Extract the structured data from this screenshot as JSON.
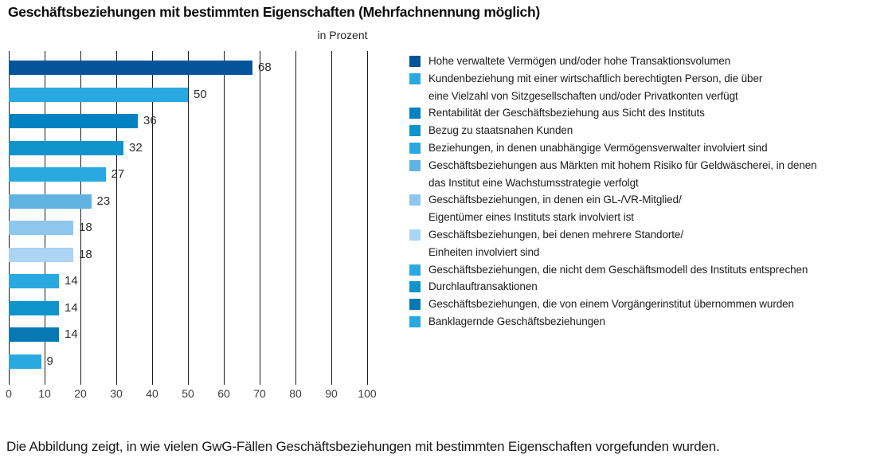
{
  "title": "Geschäftsbeziehungen mit bestimmten Eigenschaften (Mehrfachnennung möglich)",
  "caption": "Die Abbildung zeigt, in wie vielen GwG-Fällen Geschäftsbeziehungen mit bestimmten Eigenschaften vorgefunden wurden.",
  "chart_data": {
    "type": "bar",
    "orientation": "horizontal",
    "title": "Geschäftsbeziehungen mit bestimmten Eigenschaften (Mehrfachnennung möglich)",
    "unit_note": "in Prozent",
    "legend_position": "right",
    "grid": true,
    "x_axis": {
      "range": [
        0,
        100
      ],
      "ticks": [
        0,
        10,
        20,
        30,
        40,
        50,
        60,
        70,
        80,
        90,
        100
      ]
    },
    "items": [
      {
        "value": 68,
        "color": "#04549C",
        "label": [
          "Hohe verwaltete Vermögen und/oder hohe Transaktionsvolumen"
        ]
      },
      {
        "value": 50,
        "color": "#2AA9E0",
        "label": [
          "Kundenbeziehung mit einer wirtschaftlich berechtigten Person, die über",
          "eine Vielzahl von Sitzgesellschaften und/oder Privatkonten verfügt"
        ]
      },
      {
        "value": 36,
        "color": "#0082C1",
        "label": [
          "Rentabilität der Geschäftsbeziehung aus Sicht des Instituts"
        ]
      },
      {
        "value": 32,
        "color": "#0E93CB",
        "label": [
          "Bezug zu staatsnahen Kunden"
        ]
      },
      {
        "value": 27,
        "color": "#2AA9E0",
        "label": [
          "Beziehungen, in denen unabhängige Vermögensverwalter involviert sind"
        ]
      },
      {
        "value": 23,
        "color": "#60B3E2",
        "label": [
          "Geschäftsbeziehungen aus Märkten mit hohem Risiko für Geldwäscherei, in denen",
          "das Institut eine Wachstumsstrategie verfolgt"
        ]
      },
      {
        "value": 18,
        "color": "#8EC6ED",
        "label": [
          "Geschäftsbeziehungen, in denen ein GL-/VR-Mitglied/",
          "Eigentümer eines Instituts stark involviert ist"
        ]
      },
      {
        "value": 18,
        "color": "#ABD5F2",
        "label": [
          "Geschäftsbeziehungen, bei denen mehrere Standorte/",
          "Einheiten involviert sind"
        ]
      },
      {
        "value": 14,
        "color": "#2AA9E0",
        "label": [
          "Geschäftsbeziehungen, die nicht dem Geschäftsmodell des Instituts entsprechen"
        ]
      },
      {
        "value": 14,
        "color": "#0E93CB",
        "label": [
          "Durchlauftransaktionen"
        ]
      },
      {
        "value": 14,
        "color": "#0878B5",
        "label": [
          "Geschäftsbeziehungen, die von einem Vorgängerinstitut übernommen wurden"
        ]
      },
      {
        "value": 9,
        "color": "#2AA9E0",
        "label": [
          "Banklagernde Geschäftsbeziehungen"
        ]
      }
    ]
  }
}
